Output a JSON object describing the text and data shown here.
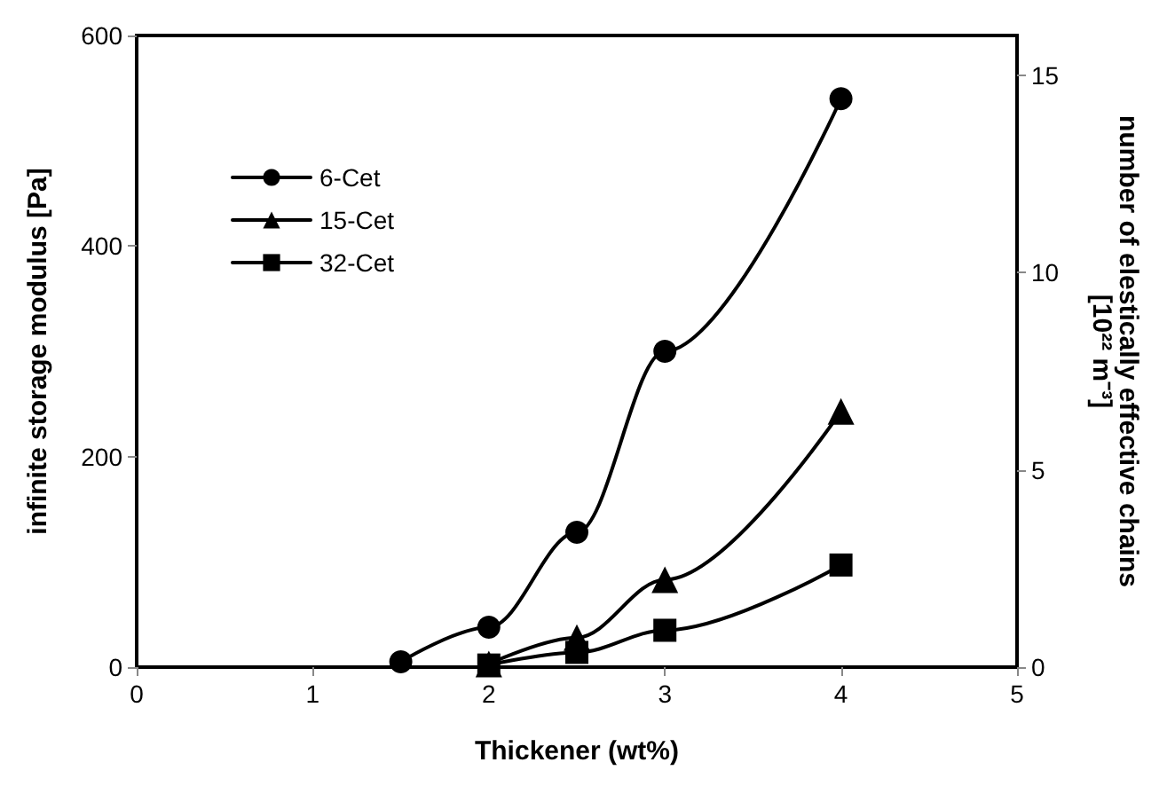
{
  "chart_data": {
    "type": "line",
    "xlabel": "Thickener (wt%)",
    "ylabel": "infinite storage modulus [Pa]",
    "y2label": "number of elestically effective chains\n[10²² m⁻³]",
    "xlim": [
      0,
      5
    ],
    "xticks": [
      0,
      1,
      2,
      3,
      4,
      5
    ],
    "ylim": [
      0,
      600
    ],
    "yticks": [
      0,
      200,
      400,
      600
    ],
    "y2lim": [
      0,
      16
    ],
    "y2ticks": [
      0,
      5,
      10,
      15
    ],
    "grid": false,
    "legend": "top left",
    "line_style": "solid",
    "series": [
      {
        "name": "6-Cet",
        "color": "#000000",
        "marker": "circle",
        "x": [
          1.5,
          2,
          2.5,
          3,
          4
        ],
        "values": [
          5,
          38,
          128,
          300,
          540
        ]
      },
      {
        "name": "15-Cet",
        "color": "#000000",
        "marker": "triangle",
        "x": [
          2,
          2.5,
          3,
          4
        ],
        "values": [
          3,
          28,
          83,
          243
        ]
      },
      {
        "name": "32-Cet",
        "color": "#000000",
        "marker": "square",
        "x": [
          2,
          2.5,
          3,
          4
        ],
        "values": [
          2,
          14,
          35,
          97
        ]
      }
    ]
  }
}
